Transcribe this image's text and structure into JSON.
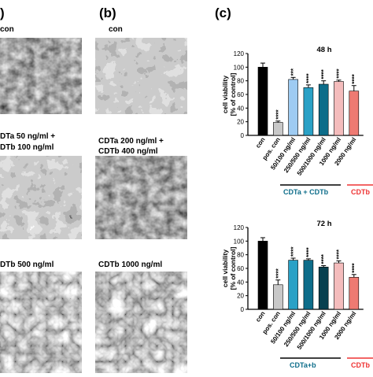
{
  "panel_a": {
    "label": ")",
    "captions": [
      "con",
      "DTa 50 ng/ml +",
      "DTb 100 ng/ml",
      "DTb 500 ng/ml"
    ]
  },
  "panel_b": {
    "label": "(b)",
    "captions": [
      "con",
      "CDTa 200 ng/ml +",
      "CDTb 400 ng/ml",
      "CDTb 1000 ng/ml"
    ]
  },
  "panel_c": {
    "label": "(c)",
    "groups": {
      "combo_48": "CDTa + CDTb",
      "single_48": "CDTb",
      "combo_72": "CDTa+b",
      "single_72": "CDTb"
    }
  },
  "colors": {
    "con": "#000000",
    "pos_con": "#c8c8c8",
    "combo_light": "#9ecbf2",
    "combo_mid": "#2aa1c6",
    "combo_dark": "#0d6d8a",
    "combo_darkest": "#08404f",
    "cdtb_light": "#f4bcbc",
    "cdtb_dark": "#ee7a72"
  },
  "chart_data": [
    {
      "type": "bar",
      "title": "48 h",
      "ylabel": "cell viability [% of control]",
      "ylim": [
        0,
        120
      ],
      "yticks": [
        0,
        20,
        40,
        60,
        80,
        100,
        120
      ],
      "categories": [
        "con",
        "pos. con",
        "50/100 ng/ml",
        "250/500 ng/ml",
        "500/1000 ng/ml",
        "1000 ng/ml",
        "2000 ng/ml"
      ],
      "values": [
        100,
        19,
        82,
        70,
        75,
        79,
        65
      ],
      "errors": [
        6,
        2,
        3,
        4,
        5,
        2,
        8
      ],
      "significance": [
        "",
        "****",
        "***",
        "****",
        "****",
        "****",
        "****"
      ],
      "bar_colors": [
        "#000000",
        "#c8c8c8",
        "#9ecbf2",
        "#2aa1c6",
        "#0d6d8a",
        "#f4bcbc",
        "#ee7a72"
      ]
    },
    {
      "type": "bar",
      "title": "72 h",
      "ylabel": "cell viability [% of control]",
      "ylim": [
        0,
        120
      ],
      "yticks": [
        0,
        20,
        40,
        60,
        80,
        100,
        120
      ],
      "categories": [
        "con",
        "pos. con",
        "50/100 ng/ml",
        "250/500 ng/ml",
        "500/1000 ng/ml",
        "1000 ng/ml",
        "2000 ng/ml"
      ],
      "values": [
        100,
        36,
        72,
        72,
        62,
        68,
        47
      ],
      "errors": [
        5,
        7,
        3,
        2,
        2,
        3,
        4
      ],
      "significance": [
        "",
        "****",
        "****",
        "****",
        "****",
        "****",
        "****"
      ],
      "bar_colors": [
        "#000000",
        "#c8c8c8",
        "#2aa1c6",
        "#0d6d8a",
        "#08404f",
        "#f4bcbc",
        "#ee7a72"
      ]
    }
  ]
}
